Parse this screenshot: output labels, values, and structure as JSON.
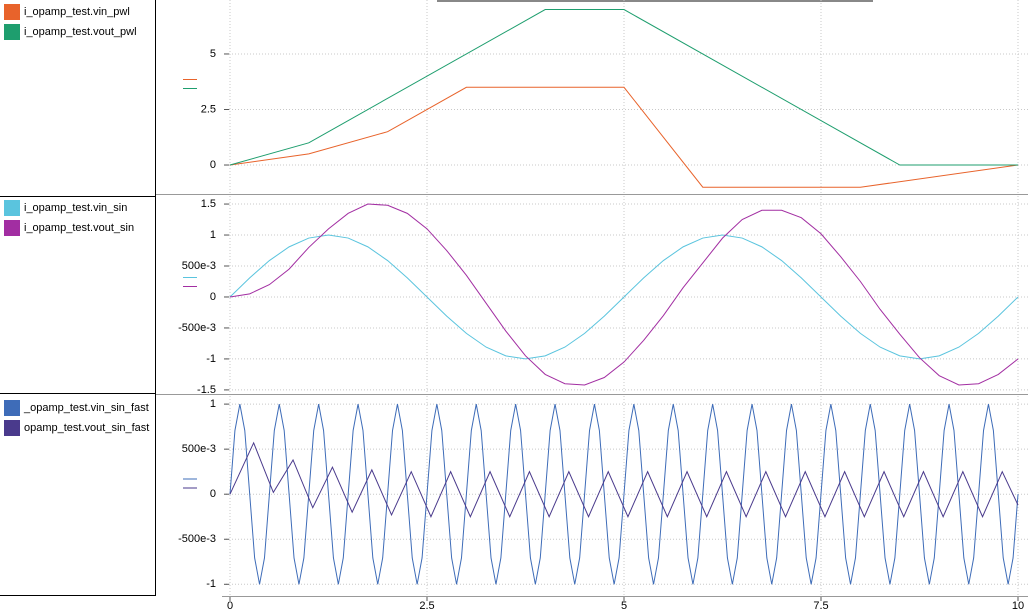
{
  "chart_data": [
    {
      "type": "line",
      "xlim": [
        0,
        10
      ],
      "ylim": [
        -1.26,
        7.43
      ],
      "yticks": [
        0,
        2.5,
        5
      ],
      "grid": true,
      "series": [
        {
          "name": "i_opamp_test.vin_pwl",
          "color": "#e8632b",
          "x": [
            0,
            1,
            2,
            3,
            5,
            6,
            8,
            10
          ],
          "values": [
            0,
            0.5,
            1.5,
            3.5,
            3.5,
            -1,
            -1,
            0
          ]
        },
        {
          "name": "i_opamp_test.vout_pwl",
          "color": "#1e9e6e",
          "x": [
            0,
            1,
            4,
            5,
            8.5,
            10
          ],
          "values": [
            0,
            1,
            7,
            7,
            0,
            0
          ]
        }
      ]
    },
    {
      "type": "line",
      "xlim": [
        0,
        10
      ],
      "ylim": [
        -1.55,
        1.63
      ],
      "yticks": [
        1.5,
        1,
        {
          "value": 0.5,
          "label": "500e-3"
        },
        0,
        {
          "value": -0.5,
          "label": "-500e-3"
        },
        -1,
        -1.5
      ],
      "grid": true,
      "series": [
        {
          "name": "i_opamp_test.vin_sin",
          "color": "#5ac4de",
          "x": [
            0,
            0.25,
            0.5,
            0.75,
            1,
            1.25,
            1.5,
            1.75,
            2,
            2.25,
            2.5,
            2.75,
            3,
            3.25,
            3.5,
            3.75,
            4,
            4.25,
            4.5,
            4.75,
            5,
            5.25,
            5.5,
            5.75,
            6,
            6.25,
            6.5,
            6.75,
            7,
            7.25,
            7.5,
            7.75,
            8,
            8.25,
            8.5,
            8.75,
            9,
            9.25,
            9.5,
            9.75,
            10
          ],
          "values": [
            0,
            0.309,
            0.588,
            0.809,
            0.951,
            1,
            0.951,
            0.809,
            0.588,
            0.309,
            0,
            -0.309,
            -0.588,
            -0.809,
            -0.951,
            -1,
            -0.951,
            -0.809,
            -0.588,
            -0.309,
            0,
            0.309,
            0.588,
            0.809,
            0.951,
            1,
            0.951,
            0.809,
            0.588,
            0.309,
            0,
            -0.309,
            -0.588,
            -0.809,
            -0.951,
            -1,
            -0.951,
            -0.809,
            -0.588,
            -0.309,
            0
          ]
        },
        {
          "name": "i_opamp_test.vout_sin",
          "color": "#a22ea2",
          "x": [
            0,
            0.25,
            0.5,
            0.75,
            1,
            1.25,
            1.5,
            1.75,
            2,
            2.25,
            2.5,
            2.75,
            3,
            3.25,
            3.5,
            3.75,
            4,
            4.25,
            4.5,
            4.75,
            5,
            5.25,
            5.5,
            5.75,
            6,
            6.25,
            6.5,
            6.75,
            7,
            7.25,
            7.5,
            7.75,
            8,
            8.25,
            8.5,
            8.75,
            9,
            9.25,
            9.5,
            9.75,
            10
          ],
          "values": [
            0,
            0.05,
            0.2,
            0.45,
            0.8,
            1.1,
            1.35,
            1.5,
            1.48,
            1.35,
            1.1,
            0.75,
            0.35,
            -0.1,
            -0.55,
            -0.95,
            -1.25,
            -1.4,
            -1.42,
            -1.3,
            -1.05,
            -0.7,
            -0.3,
            0.15,
            0.55,
            0.95,
            1.25,
            1.4,
            1.4,
            1.28,
            1.02,
            0.65,
            0.25,
            -0.2,
            -0.6,
            -0.98,
            -1.27,
            -1.42,
            -1.4,
            -1.25,
            -1.0
          ]
        }
      ]
    },
    {
      "type": "line",
      "xlim": [
        0,
        10
      ],
      "ylim": [
        -1.13,
        1.09
      ],
      "yticks": [
        1,
        {
          "value": 0.5,
          "label": "500e-3"
        },
        0,
        {
          "value": -0.5,
          "label": "-500e-3"
        },
        -1
      ],
      "grid": true,
      "xticks": [
        0,
        2.5,
        5,
        7.5,
        10
      ],
      "series": [
        {
          "name": "_opamp_test.vin_sin_fast",
          "color": "#3e6cb8",
          "x": [
            0,
            0.0625,
            0.125,
            0.1875,
            0.25,
            0.3125,
            0.375,
            0.4375,
            0.5,
            0.5625,
            0.625,
            0.6875,
            0.75,
            0.8125,
            0.875,
            0.9375,
            1,
            1.0625,
            1.125,
            1.1875,
            1.25,
            1.3125,
            1.375,
            1.4375,
            1.5,
            1.5625,
            1.625,
            1.6875,
            1.75,
            1.8125,
            1.875,
            1.9375,
            2,
            2.0625,
            2.125,
            2.1875,
            2.25,
            2.3125,
            2.375,
            2.4375,
            2.5,
            2.5625,
            2.625,
            2.6875,
            2.75,
            2.8125,
            2.875,
            2.9375,
            3,
            3.0625,
            3.125,
            3.1875,
            3.25,
            3.3125,
            3.375,
            3.4375,
            3.5,
            3.5625,
            3.625,
            3.6875,
            3.75,
            3.8125,
            3.875,
            3.9375,
            4,
            4.0625,
            4.125,
            4.1875,
            4.25,
            4.3125,
            4.375,
            4.4375,
            4.5,
            4.5625,
            4.625,
            4.6875,
            4.75,
            4.8125,
            4.875,
            4.9375,
            5,
            5.0625,
            5.125,
            5.1875,
            5.25,
            5.3125,
            5.375,
            5.4375,
            5.5,
            5.5625,
            5.625,
            5.6875,
            5.75,
            5.8125,
            5.875,
            5.9375,
            6,
            6.0625,
            6.125,
            6.1875,
            6.25,
            6.3125,
            6.375,
            6.4375,
            6.5,
            6.5625,
            6.625,
            6.6875,
            6.75,
            6.8125,
            6.875,
            6.9375,
            7,
            7.0625,
            7.125,
            7.1875,
            7.25,
            7.3125,
            7.375,
            7.4375,
            7.5,
            7.5625,
            7.625,
            7.6875,
            7.75,
            7.8125,
            7.875,
            7.9375,
            8,
            8.0625,
            8.125,
            8.1875,
            8.25,
            8.3125,
            8.375,
            8.4375,
            8.5,
            8.5625,
            8.625,
            8.6875,
            8.75,
            8.8125,
            8.875,
            8.9375,
            9,
            9.0625,
            9.125,
            9.1875,
            9.25,
            9.3125,
            9.375,
            9.4375,
            9.5,
            9.5625,
            9.625,
            9.6875,
            9.75,
            9.8125,
            9.875,
            9.9375,
            10
          ],
          "values": [
            0,
            0.707,
            1,
            0.707,
            0,
            -0.707,
            -1,
            -0.707,
            0,
            0.707,
            1,
            0.707,
            0,
            -0.707,
            -1,
            -0.707,
            0,
            0.707,
            1,
            0.707,
            0,
            -0.707,
            -1,
            -0.707,
            0,
            0.707,
            1,
            0.707,
            0,
            -0.707,
            -1,
            -0.707,
            0,
            0.707,
            1,
            0.707,
            0,
            -0.707,
            -1,
            -0.707,
            0,
            0.707,
            1,
            0.707,
            0,
            -0.707,
            -1,
            -0.707,
            0,
            0.707,
            1,
            0.707,
            0,
            -0.707,
            -1,
            -0.707,
            0,
            0.707,
            1,
            0.707,
            0,
            -0.707,
            -1,
            -0.707,
            0,
            0.707,
            1,
            0.707,
            0,
            -0.707,
            -1,
            -0.707,
            0,
            0.707,
            1,
            0.707,
            0,
            -0.707,
            -1,
            -0.707,
            0,
            0.707,
            1,
            0.707,
            0,
            -0.707,
            -1,
            -0.707,
            0,
            0.707,
            1,
            0.707,
            0,
            -0.707,
            -1,
            -0.707,
            0,
            0.707,
            1,
            0.707,
            0,
            -0.707,
            -1,
            -0.707,
            0,
            0.707,
            1,
            0.707,
            0,
            -0.707,
            -1,
            -0.707,
            0,
            0.707,
            1,
            0.707,
            0,
            -0.707,
            -1,
            -0.707,
            0,
            0.707,
            1,
            0.707,
            0,
            -0.707,
            -1,
            -0.707,
            0,
            0.707,
            1,
            0.707,
            0,
            -0.707,
            -1,
            -0.707,
            0,
            0.707,
            1,
            0.707,
            0,
            -0.707,
            -1,
            -0.707,
            0,
            0.707,
            1,
            0.707,
            0,
            -0.707,
            -1,
            -0.707,
            0,
            0.707,
            1,
            0.707,
            0,
            -0.707,
            -1,
            -0.707,
            0
          ]
        },
        {
          "name": "opamp_test.vout_sin_fast",
          "color": "#4a3a8c",
          "x": [
            0,
            0.3,
            0.55,
            0.8,
            1.05,
            1.3,
            1.55,
            1.8,
            2.05,
            2.3,
            2.55,
            2.8,
            3.05,
            3.3,
            3.55,
            3.8,
            4.05,
            4.3,
            4.55,
            4.8,
            5.05,
            5.3,
            5.55,
            5.8,
            6.05,
            6.3,
            6.55,
            6.8,
            7.05,
            7.3,
            7.55,
            7.8,
            8.05,
            8.3,
            8.55,
            8.8,
            9.05,
            9.3,
            9.55,
            9.8,
            10
          ],
          "values": [
            0,
            0.57,
            0.02,
            0.38,
            -0.15,
            0.3,
            -0.2,
            0.27,
            -0.23,
            0.25,
            -0.25,
            0.25,
            -0.25,
            0.25,
            -0.25,
            0.25,
            -0.25,
            0.25,
            -0.25,
            0.25,
            -0.25,
            0.25,
            -0.25,
            0.25,
            -0.25,
            0.25,
            -0.25,
            0.25,
            -0.25,
            0.25,
            -0.25,
            0.25,
            -0.25,
            0.25,
            -0.25,
            0.25,
            -0.25,
            0.25,
            -0.25,
            0.25,
            -0.12
          ]
        }
      ]
    }
  ]
}
